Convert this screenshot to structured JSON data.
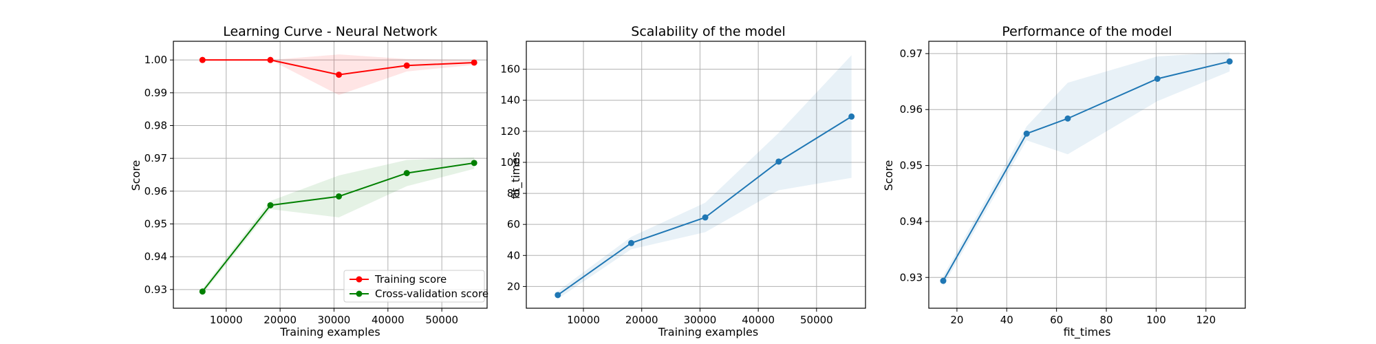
{
  "chart_data": [
    {
      "type": "line",
      "title": "Learning Curve - Neural Network",
      "xlabel": "Training examples",
      "ylabel": "Score",
      "xlim": [
        200,
        58400
      ],
      "ylim": [
        0.9243,
        1.0057
      ],
      "xticks": [
        10000,
        20000,
        30000,
        40000,
        50000
      ],
      "xtick_labels": [
        "10000",
        "20000",
        "30000",
        "40000",
        "50000"
      ],
      "yticks": [
        0.93,
        0.94,
        0.95,
        0.96,
        0.97,
        0.98,
        0.99,
        1.0
      ],
      "ytick_labels": [
        "0.93",
        "0.94",
        "0.95",
        "0.96",
        "0.97",
        "0.98",
        "0.99",
        "1.00"
      ],
      "grid": true,
      "legend": "lower-right",
      "x": [
        5600,
        18200,
        30900,
        43500,
        56000
      ],
      "series": [
        {
          "name": "Training score",
          "color": "#ff0000",
          "values": [
            1.0,
            1.0,
            0.9955,
            0.9983,
            0.9992
          ],
          "band_lower": [
            1.0,
            1.0,
            0.9893,
            0.9965,
            0.9985
          ],
          "band_upper": [
            1.0,
            1.0,
            1.0017,
            1.0003,
            1.0
          ]
        },
        {
          "name": "Cross-validation score",
          "color": "#008000",
          "values": [
            0.9294,
            0.9557,
            0.9584,
            0.9655,
            0.9686
          ],
          "band_lower": [
            0.9285,
            0.9545,
            0.952,
            0.9615,
            0.9668
          ],
          "band_upper": [
            0.9303,
            0.957,
            0.9648,
            0.9695,
            0.9703
          ]
        }
      ]
    },
    {
      "type": "line",
      "title": "Scalability of the model",
      "xlabel": "Training examples",
      "ylabel": "fit_times",
      "xlim": [
        200,
        58400
      ],
      "ylim": [
        6,
        178
      ],
      "xticks": [
        10000,
        20000,
        30000,
        40000,
        50000
      ],
      "xtick_labels": [
        "10000",
        "20000",
        "30000",
        "40000",
        "50000"
      ],
      "yticks": [
        20,
        40,
        60,
        80,
        100,
        120,
        140,
        160
      ],
      "ytick_labels": [
        "20",
        "40",
        "60",
        "80",
        "100",
        "120",
        "140",
        "160"
      ],
      "grid": true,
      "x": [
        5600,
        18200,
        30900,
        43500,
        56000
      ],
      "series": [
        {
          "color": "#1f77b4",
          "values": [
            14.5,
            48,
            64.5,
            100.5,
            129.5
          ],
          "band_lower": [
            12,
            44,
            55,
            82,
            90
          ],
          "band_upper": [
            17,
            52,
            74,
            119,
            169
          ]
        }
      ]
    },
    {
      "type": "line",
      "title": "Performance of the model",
      "xlabel": "fit_times",
      "ylabel": "Score",
      "xlim": [
        8.7,
        135.8
      ],
      "ylim": [
        0.9245,
        0.9722
      ],
      "xticks": [
        20,
        40,
        60,
        80,
        100,
        120
      ],
      "xtick_labels": [
        "20",
        "40",
        "60",
        "80",
        "100",
        "120"
      ],
      "yticks": [
        0.93,
        0.94,
        0.95,
        0.96,
        0.97
      ],
      "ytick_labels": [
        "0.93",
        "0.94",
        "0.95",
        "0.96",
        "0.97"
      ],
      "grid": true,
      "series": [
        {
          "color": "#1f77b4",
          "x": [
            14.5,
            48,
            64.5,
            100.5,
            129.5
          ],
          "values": [
            0.9294,
            0.9557,
            0.9584,
            0.9655,
            0.9686
          ],
          "band_lower": [
            0.9285,
            0.9545,
            0.952,
            0.9615,
            0.9668
          ],
          "band_upper": [
            0.9303,
            0.957,
            0.9648,
            0.9695,
            0.9703
          ]
        }
      ]
    }
  ]
}
